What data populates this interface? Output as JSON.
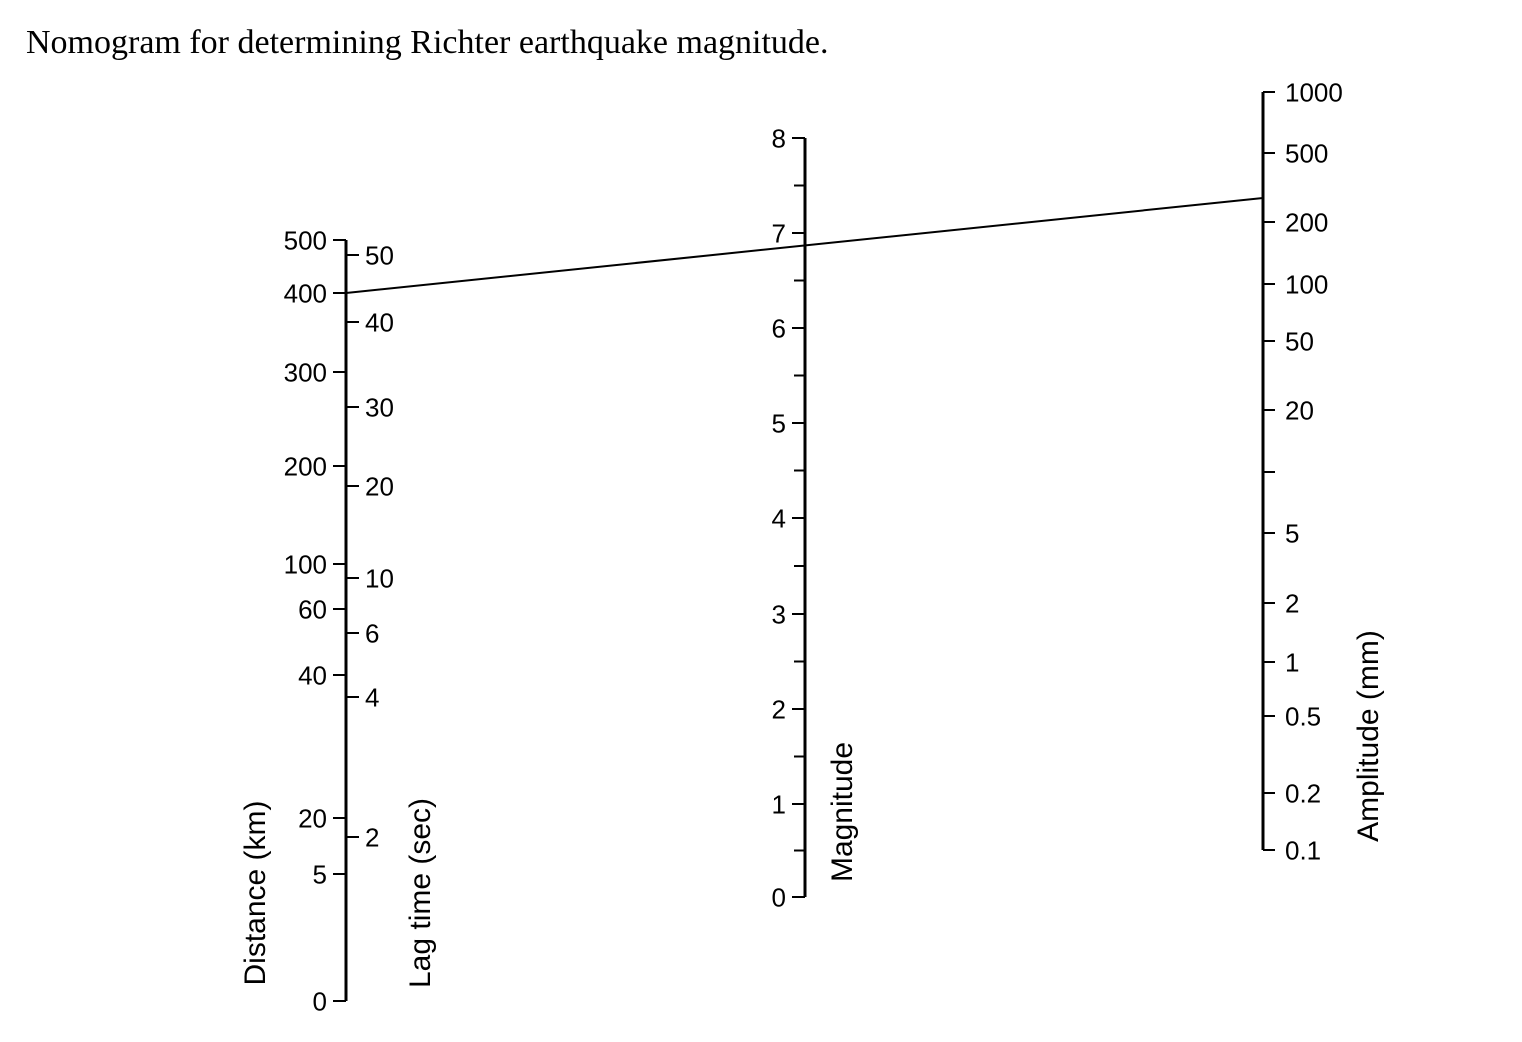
{
  "title": "Nomogram for determining Richter earthquake magnitude.",
  "scales": {
    "distance": {
      "label": "Distance (km)",
      "ticks": [
        "500",
        "400",
        "300",
        "200",
        "100",
        "60",
        "40",
        "20",
        "5",
        "0"
      ]
    },
    "lag_time": {
      "label": "Lag time (sec)",
      "ticks": [
        "50",
        "40",
        "30",
        "20",
        "10",
        "6",
        "4",
        "2"
      ]
    },
    "magnitude": {
      "label": "Magnitude",
      "ticks": [
        "8",
        "7",
        "6",
        "5",
        "4",
        "3",
        "2",
        "1",
        "0"
      ]
    },
    "amplitude": {
      "label": "Amplitude (mm)",
      "ticks": [
        "1000",
        "500",
        "200",
        "100",
        "50",
        "20",
        "5",
        "2",
        "1",
        "0.5",
        "0.2",
        "0.1"
      ]
    }
  },
  "reading_line": {
    "distance_km": 400,
    "magnitude": 6.85,
    "amplitude_mm": 300
  }
}
